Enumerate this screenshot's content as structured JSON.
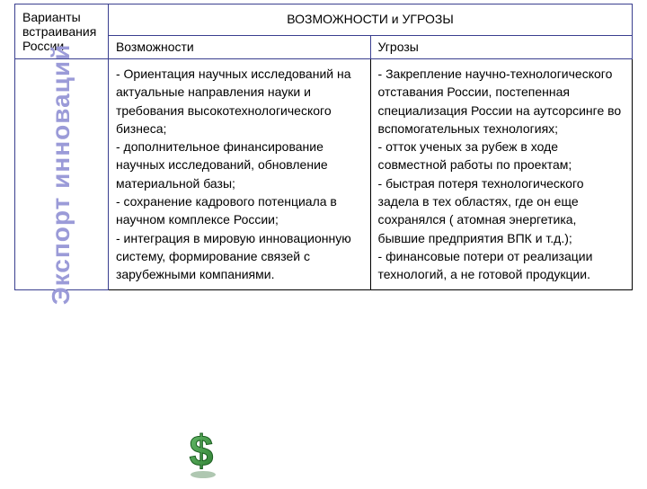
{
  "table": {
    "header_col1": "Варианты встраивания России",
    "header_merged": "ВОЗМОЖНОСТИ и УГРОЗЫ",
    "header_col2": "Возможности",
    "header_col3": "Угрозы",
    "sidebar_label": "Экспорт инноваций",
    "opportunities": "-  Ориентация научных исследований на актуальные направления науки и требования высокотехнологического бизнеса;\n- дополнительное финансирование научных исследований, обновление материальной базы;\n- сохранение кадрового потенциала в научном комплексе России;\n- интеграция в мировую инновационную систему, формирование связей с зарубежными компаниями.",
    "threats": "- Закрепление научно-технологического отставания России, постепенная специализация России на аутсорсинге во вспомогательных технологиях;\n- отток ученых за рубеж в ходе совместной работы по проектам;\n- быстрая потеря технологического задела в тех областях, где он еще сохранялся ( атомная энергетика, бывшие предприятия ВПК и т.д.);\n- финансовые потери от реализации технологий, а не готовой продукции."
  },
  "colors": {
    "border_header": "#3a3f8f",
    "border_content": "#000000",
    "sidebar_text": "#9b9bd8",
    "dollar_main": "#2e7d32",
    "dollar_light": "#66bb6a",
    "dollar_shadow": "#1b5e20"
  },
  "fonts": {
    "header_size": 14,
    "content_size": 14,
    "sidebar_size": 28
  }
}
